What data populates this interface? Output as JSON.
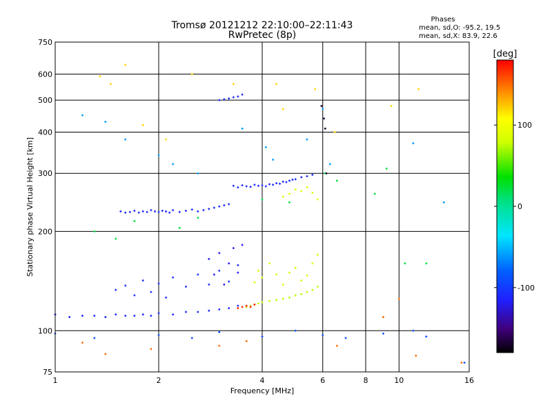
{
  "chart_data": {
    "type": "scatter",
    "title": "Tromsø 20121212 22:10:00–22:11:43",
    "subtitle": "RwPretec (8p)",
    "xlabel": "Frequency [MHz]",
    "ylabel": "Stationary phase Virtual Height [km]",
    "xscale": "log",
    "yscale": "log",
    "xlim": [
      1,
      16
    ],
    "ylim": [
      75,
      750
    ],
    "grid": true,
    "xticks": [
      {
        "v": 1,
        "label": "1"
      },
      {
        "v": 2,
        "label": "2"
      },
      {
        "v": 4,
        "label": "4"
      },
      {
        "v": 6,
        "label": "6"
      },
      {
        "v": 8,
        "label": "8"
      },
      {
        "v": 10,
        "label": "10"
      },
      {
        "v": 16,
        "label": "16"
      }
    ],
    "yticks": [
      {
        "v": 75,
        "label": "75"
      },
      {
        "v": 100,
        "label": "100"
      },
      {
        "v": 200,
        "label": "200"
      },
      {
        "v": 300,
        "label": "300"
      },
      {
        "v": 400,
        "label": "400"
      },
      {
        "v": 500,
        "label": "500"
      },
      {
        "v": 600,
        "label": "600"
      },
      {
        "v": 750,
        "label": "750"
      }
    ],
    "legend": {
      "title": "Phases",
      "lines": [
        "mean, sd,O: -95.2, 19.5",
        "mean, sd,X: 83.9, 22.6"
      ]
    },
    "colorbar": {
      "label": "[deg]",
      "min": -180,
      "max": 180,
      "ticks": [
        {
          "v": 100,
          "label": "100"
        },
        {
          "v": 0,
          "label": "0"
        },
        {
          "v": -100,
          "label": "-100"
        }
      ]
    },
    "traces": [
      {
        "x": [
          1.0,
          1.1,
          1.2,
          1.3,
          1.4,
          1.5,
          1.6,
          1.7,
          1.8,
          1.9,
          2.0,
          2.2,
          2.4,
          2.6,
          2.8,
          3.0,
          3.2,
          3.4
        ],
        "y": [
          112,
          110,
          111,
          111,
          110,
          112,
          111,
          111,
          112,
          111,
          113,
          112,
          114,
          114,
          115,
          116,
          117,
          119
        ],
        "phase": -110
      },
      {
        "x": [
          1.55,
          1.6,
          1.65,
          1.7,
          1.75,
          1.8,
          1.85,
          1.9,
          1.95,
          2.0,
          2.05,
          2.1,
          2.15,
          2.2,
          2.3,
          2.4,
          2.5,
          2.6,
          2.7,
          2.8,
          2.9,
          3.0,
          3.1,
          3.2
        ],
        "y": [
          230,
          228,
          229,
          231,
          228,
          230,
          229,
          232,
          230,
          229,
          231,
          230,
          228,
          232,
          229,
          231,
          233,
          230,
          232,
          234,
          236,
          238,
          240,
          242
        ],
        "phase": -110
      },
      {
        "x": [
          3.3,
          3.4,
          3.5,
          3.6,
          3.7,
          3.8,
          3.9,
          4.0,
          4.1,
          4.2,
          4.3,
          4.4,
          4.5,
          4.6,
          4.7,
          4.8,
          4.9,
          5.0,
          5.2,
          5.4,
          5.6
        ],
        "y": [
          275,
          272,
          276,
          274,
          273,
          277,
          275,
          276,
          274,
          278,
          277,
          280,
          279,
          283,
          282,
          285,
          287,
          288,
          292,
          294,
          297
        ],
        "phase": -110
      },
      {
        "x": [
          3.0,
          3.1,
          3.2,
          3.3,
          3.4,
          3.5
        ],
        "y": [
          500,
          503,
          506,
          510,
          513,
          520
        ],
        "phase": -110
      },
      {
        "x": [
          1.5,
          1.6,
          1.7,
          1.8,
          1.9,
          2.0,
          2.1,
          2.2,
          2.4,
          2.6,
          2.8,
          3.0,
          3.2,
          3.4
        ],
        "y": [
          133,
          137,
          128,
          142,
          131,
          139,
          126,
          145,
          136,
          148,
          138,
          152,
          141,
          158
        ],
        "phase": -105
      },
      {
        "x": [
          2.8,
          2.9,
          3.0,
          3.1,
          3.2,
          3.3,
          3.4,
          3.5
        ],
        "y": [
          165,
          148,
          172,
          138,
          160,
          178,
          150,
          182
        ],
        "phase": -120
      },
      {
        "x": [
          3.6,
          3.7,
          3.8,
          3.9,
          4.0,
          4.2,
          4.4,
          4.6,
          4.8,
          5.0,
          5.2,
          5.4,
          5.6,
          5.8
        ],
        "y": [
          118,
          119,
          120,
          121,
          122,
          123,
          124,
          125,
          126,
          128,
          129,
          131,
          133,
          136
        ],
        "phase": 75
      },
      {
        "x": [
          3.4,
          3.5,
          3.6,
          3.7,
          3.8
        ],
        "y": [
          117,
          118,
          119,
          118,
          120
        ],
        "phase": 170
      },
      {
        "x": [
          3.8,
          3.9,
          4.0,
          4.2,
          4.4,
          4.6,
          4.8,
          5.0,
          5.2,
          5.4,
          5.6,
          5.8
        ],
        "y": [
          140,
          152,
          145,
          160,
          148,
          138,
          150,
          155,
          142,
          147,
          160,
          170
        ],
        "phase": 80
      },
      {
        "x": [
          4.6,
          4.8,
          5.0,
          5.2,
          5.4,
          5.6,
          5.8
        ],
        "y": [
          255,
          260,
          268,
          265,
          272,
          262,
          250
        ],
        "phase": 90
      },
      {
        "x": [
          1.0,
          1.3,
          2.0,
          2.5,
          3.0,
          4.0,
          5.0,
          6.0,
          7.0,
          9.0,
          11.0,
          12.0,
          15.5
        ],
        "y": [
          98,
          95,
          97,
          95,
          99,
          96,
          100,
          97,
          95,
          98,
          100,
          96,
          80
        ],
        "phase": -90
      },
      {
        "x": [
          1.35,
          1.45,
          1.6,
          1.8,
          2.1,
          2.5,
          3.3,
          4.4,
          4.6,
          5.7,
          6.5,
          9.5,
          11.4
        ],
        "y": [
          590,
          560,
          640,
          420,
          380,
          600,
          560,
          560,
          470,
          540,
          400,
          480,
          540
        ],
        "phase": 120
      },
      {
        "x": [
          1.2,
          1.4,
          1.6,
          2.0,
          2.2,
          2.6,
          3.5,
          4.1,
          4.3,
          5.4,
          6.0,
          6.3,
          11.0,
          13.5
        ],
        "y": [
          450,
          430,
          380,
          340,
          320,
          300,
          410,
          360,
          330,
          380,
          470,
          320,
          370,
          245
        ],
        "phase": -60
      },
      {
        "x": [
          1.3,
          1.5,
          1.7,
          2.3,
          2.6,
          4.0,
          4.8,
          6.1,
          6.6,
          8.5,
          9.2,
          10.4,
          12.0
        ],
        "y": [
          200,
          190,
          215,
          205,
          220,
          250,
          245,
          300,
          285,
          260,
          310,
          160,
          160
        ],
        "phase": 20
      },
      {
        "x": [
          1.2,
          1.4,
          1.9,
          3.0,
          3.6,
          6.6,
          9.0,
          10.0,
          11.2,
          15.2
        ],
        "y": [
          92,
          85,
          88,
          90,
          93,
          90,
          110,
          125,
          84,
          80
        ],
        "phase": 150
      },
      {
        "x": [
          5.95,
          6.05,
          6.1,
          6.15
        ],
        "y": [
          480,
          440,
          410,
          300
        ],
        "phase": -170
      }
    ]
  }
}
